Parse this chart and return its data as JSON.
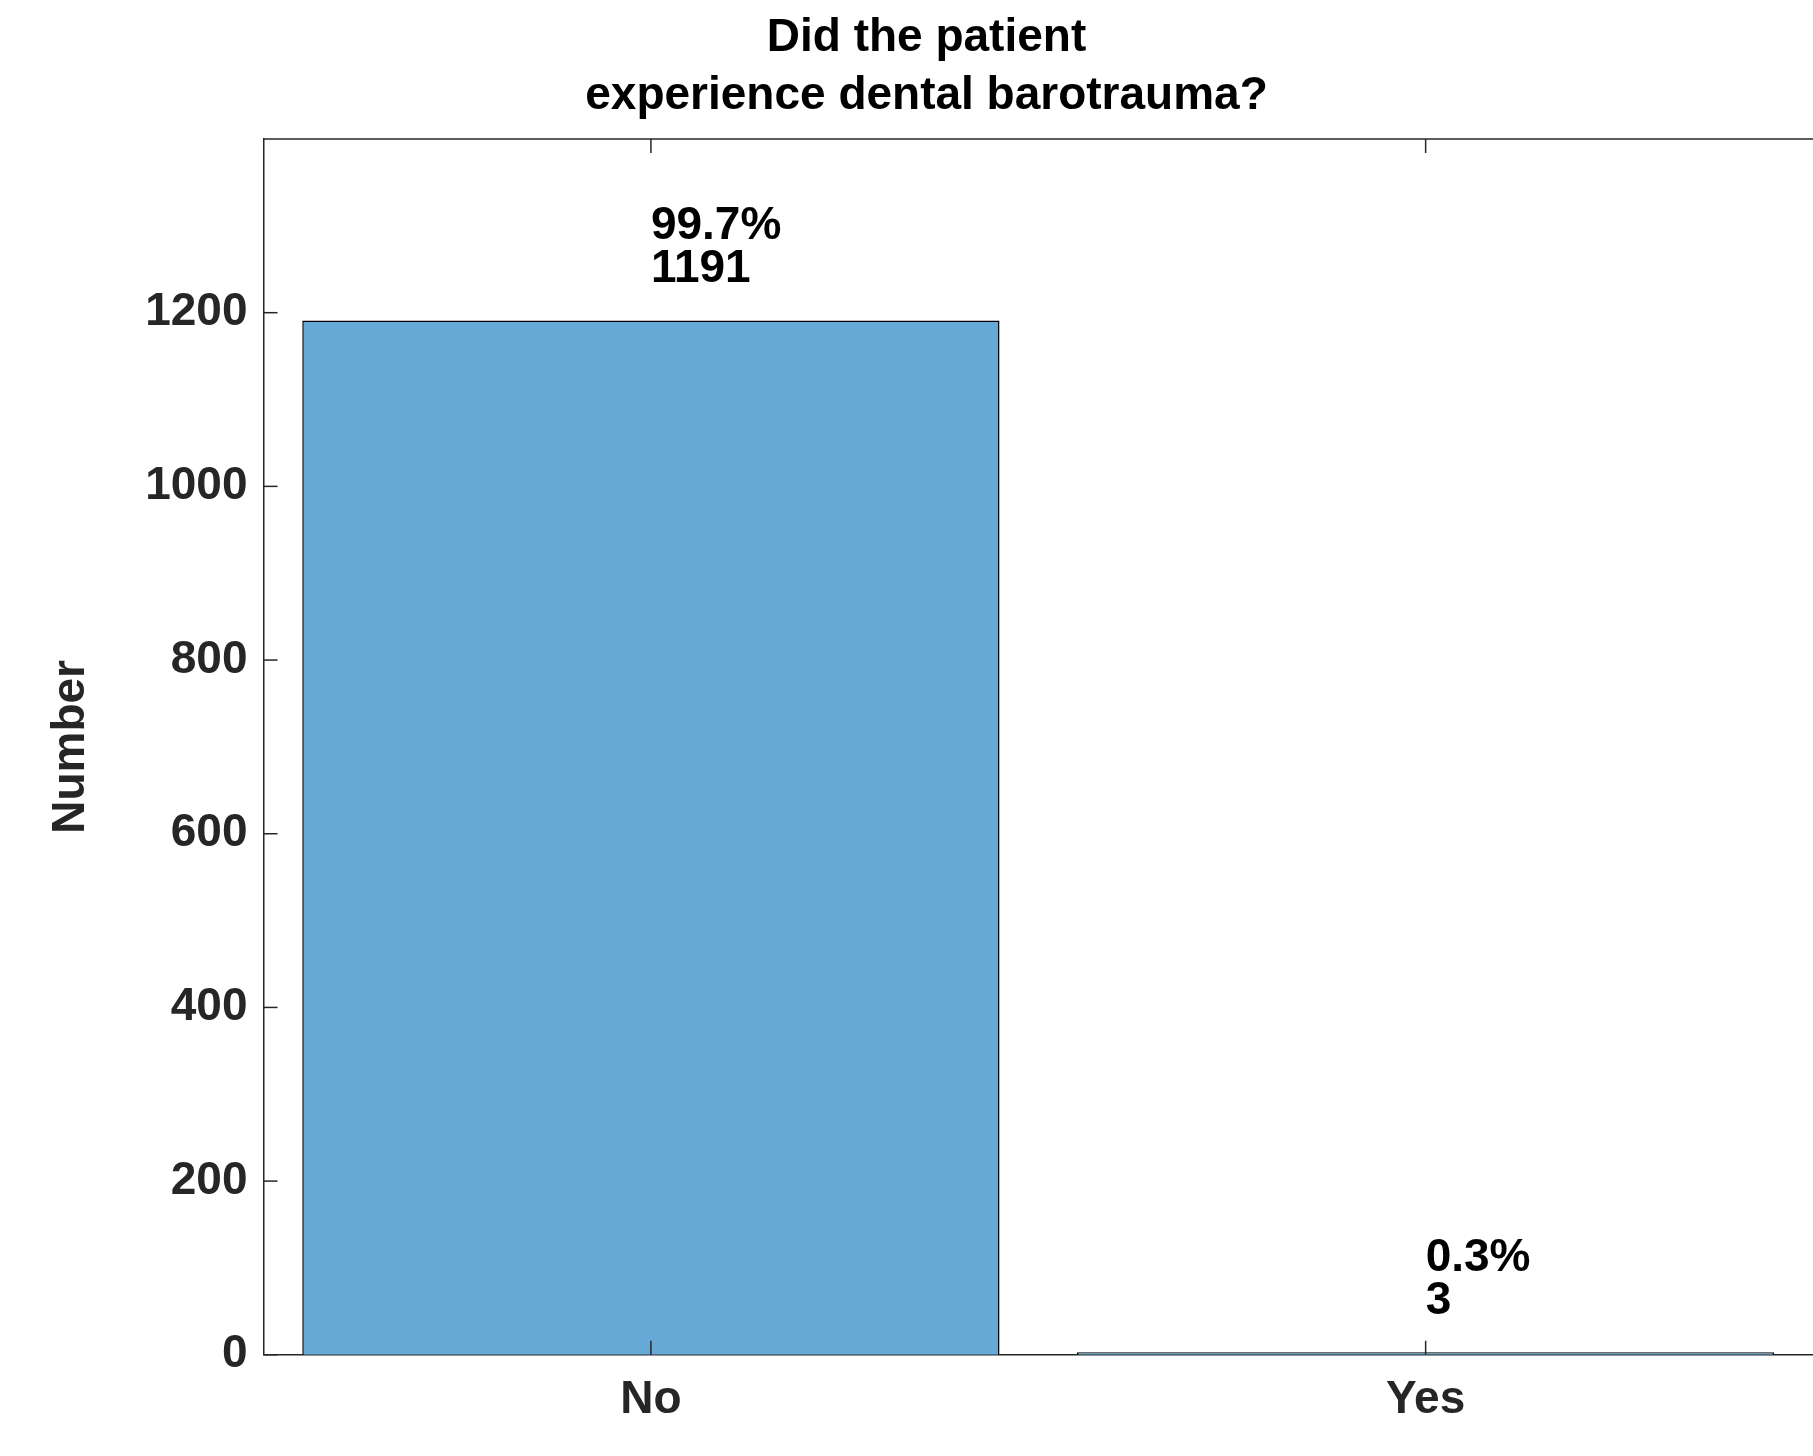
{
  "chart_data": {
    "type": "bar",
    "title": "Did the patient\nexperience dental barotrauma?",
    "ylabel": "Number",
    "categories": [
      "No",
      "Yes"
    ],
    "values": [
      1191,
      3
    ],
    "color": "#67a9d6",
    "value_labels": [
      "99.7%\n1191",
      "0.3%\n3"
    ],
    "ylim": [
      0,
      1400
    ],
    "yticks": [
      0,
      200,
      400,
      600,
      800,
      1000,
      1200
    ],
    "grid": false,
    "legend": false
  }
}
